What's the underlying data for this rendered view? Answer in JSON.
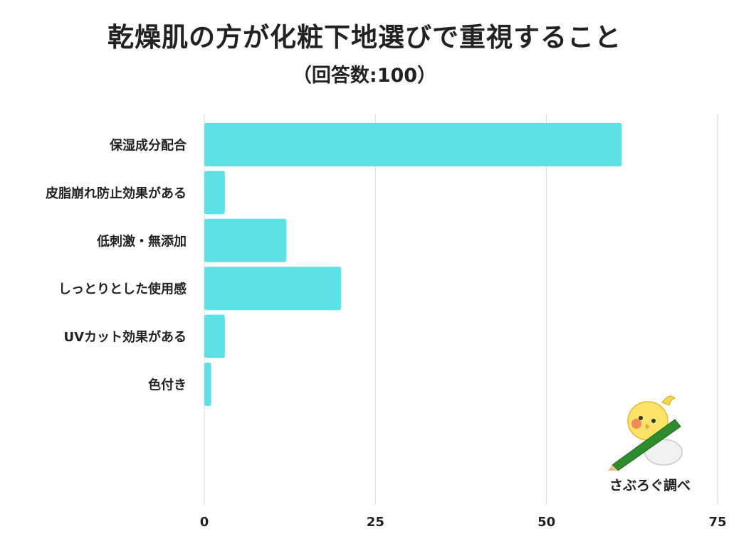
{
  "header": {
    "title": "乾燥肌の方が化粧下地選びで重視すること",
    "subtitle": "（回答数:100）"
  },
  "credit": {
    "text": "さぶろぐ調べ"
  },
  "colors": {
    "bar": "#5de0e6",
    "grid": "#d9d9d9",
    "text": "#222222"
  },
  "chart_data": {
    "type": "bar",
    "orientation": "horizontal",
    "title": "乾燥肌の方が化粧下地選びで重視すること",
    "subtitle": "（回答数:100）",
    "categories": [
      "保湿成分配合",
      "皮脂崩れ防止効果がある",
      "低刺激・無添加",
      "しっとりとした使用感",
      "UVカット効果がある",
      "色付き"
    ],
    "values": [
      61,
      3,
      12,
      20,
      3,
      1
    ],
    "xlim": [
      0,
      75
    ],
    "xticks": [
      0,
      25,
      50,
      75
    ],
    "grid": true,
    "legend": "none"
  }
}
